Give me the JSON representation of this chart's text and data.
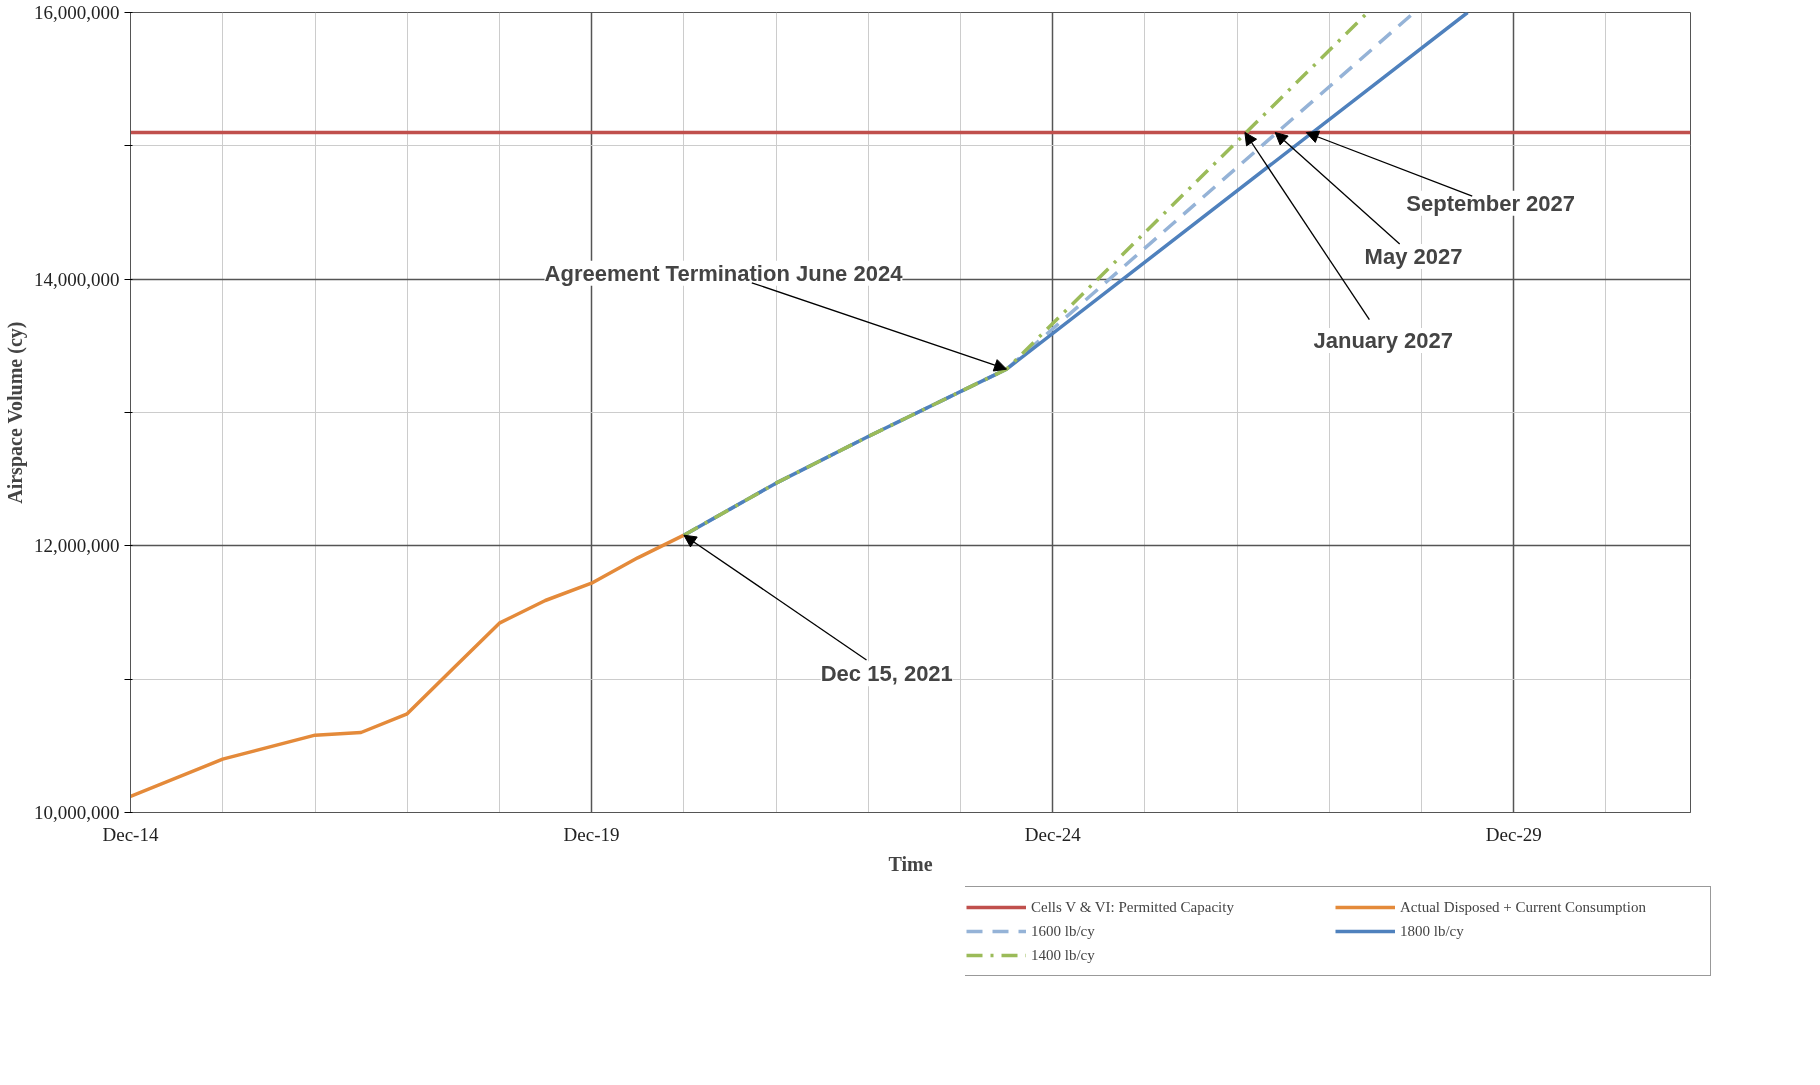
{
  "chart_data": {
    "type": "line",
    "xlabel": "Time",
    "ylabel": "Airspace Volume (cy)",
    "xlim": [
      "2014-12",
      "2031-11"
    ],
    "xticks": [
      {
        "value": "2014-12",
        "label": "Dec-14"
      },
      {
        "value": "2015-12",
        "label": null
      },
      {
        "value": "2016-12",
        "label": null
      },
      {
        "value": "2017-12",
        "label": null
      },
      {
        "value": "2018-12",
        "label": null
      },
      {
        "value": "2019-12",
        "label": "Dec-19"
      },
      {
        "value": "2020-12",
        "label": null
      },
      {
        "value": "2021-12",
        "label": null
      },
      {
        "value": "2022-12",
        "label": null
      },
      {
        "value": "2023-12",
        "label": null
      },
      {
        "value": "2024-12",
        "label": "Dec-24"
      },
      {
        "value": "2025-12",
        "label": null
      },
      {
        "value": "2026-12",
        "label": null
      },
      {
        "value": "2027-12",
        "label": null
      },
      {
        "value": "2028-12",
        "label": null
      },
      {
        "value": "2029-12",
        "label": "Dec-29"
      },
      {
        "value": "2030-12",
        "label": null
      }
    ],
    "ylim": [
      10000000,
      16000000
    ],
    "yticks": [
      {
        "value": 10000000,
        "label": "10,000,000"
      },
      {
        "value": 11000000,
        "label": null
      },
      {
        "value": 12000000,
        "label": "12,000,000"
      },
      {
        "value": 13000000,
        "label": null
      },
      {
        "value": 14000000,
        "label": "14,000,000"
      },
      {
        "value": 15000000,
        "label": null
      },
      {
        "value": 16000000,
        "label": "16,000,000"
      }
    ],
    "grid": true,
    "legend": "bottom right",
    "series": [
      {
        "name": "Cells V & VI: Permitted Capacity",
        "color": "#c0504d",
        "line_style": "solid",
        "x": [
          "2014-12",
          "2031-11"
        ],
        "values": [
          15100000,
          15100000
        ]
      },
      {
        "name": "Actual Disposed + Current Consumption",
        "color": "#e48a3a",
        "line_style": "solid",
        "x": [
          "2014-12",
          "2015-12",
          "2016-12",
          "2017-06",
          "2017-12",
          "2018-06",
          "2018-12",
          "2019-06",
          "2019-12",
          "2020-06",
          "2020-12"
        ],
        "values": [
          10120000,
          10400000,
          10580000,
          10600000,
          10740000,
          11080000,
          11420000,
          11590000,
          11720000,
          11910000,
          12080000
        ]
      },
      {
        "name": "1600 lb/cy",
        "color": "#95b3d7",
        "line_style": "dashed",
        "x": [
          "2020-12",
          "2021-12",
          "2022-12",
          "2024-06",
          "2028-11"
        ],
        "values": [
          12080000,
          12470000,
          12820000,
          13325000,
          16000000
        ]
      },
      {
        "name": "1800 lb/cy",
        "color": "#4f81bd",
        "line_style": "solid",
        "x": [
          "2020-12",
          "2021-12",
          "2022-12",
          "2024-06",
          "2029-06"
        ],
        "values": [
          12080000,
          12470000,
          12820000,
          13325000,
          16000000
        ]
      },
      {
        "name": "1400 lb/cy",
        "color": "#9bbb59",
        "line_style": "dashdot",
        "x": [
          "2020-12",
          "2021-12",
          "2022-12",
          "2024-06",
          "2028-05"
        ],
        "values": [
          12080000,
          12470000,
          12820000,
          13325000,
          16000000
        ]
      }
    ],
    "annotations": [
      {
        "text": "Agreement Termination June 2024",
        "x": "2024-06",
        "y": 13325000
      },
      {
        "text": "Dec 15, 2021",
        "x": "2020-12",
        "y": 12080000
      },
      {
        "text": "January 2027",
        "x": "2027-01",
        "y": 15100000
      },
      {
        "text": "May 2027",
        "x": "2027-05",
        "y": 15100000
      },
      {
        "text": "September 2027",
        "x": "2027-09",
        "y": 15100000
      }
    ]
  }
}
